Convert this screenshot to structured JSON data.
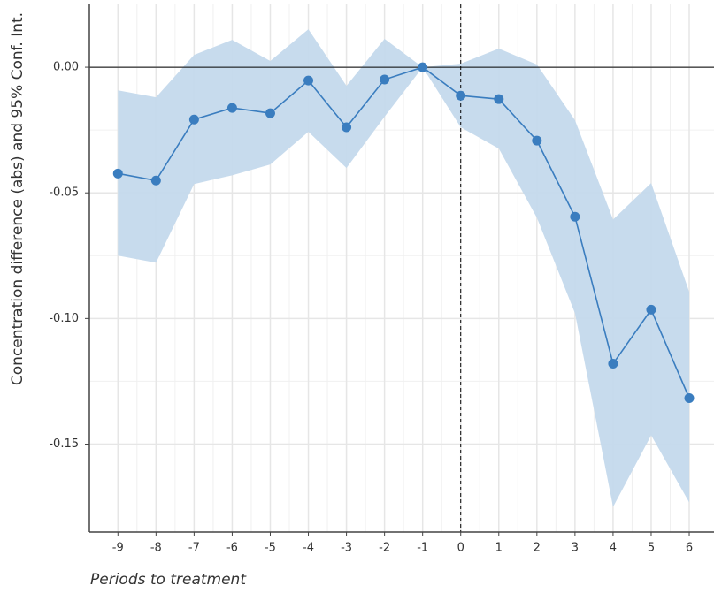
{
  "chart_data": {
    "type": "line",
    "xlabel": "Periods to treatment",
    "ylabel": "Concentration difference (abs) and 95% Conf. Int.",
    "x": [
      -9,
      -8,
      -7,
      -6,
      -5,
      -4,
      -3,
      -2,
      -1,
      0,
      1,
      2,
      3,
      4,
      5,
      6
    ],
    "values": [
      -0.0423,
      -0.0451,
      -0.0208,
      -0.0162,
      -0.0183,
      -0.0053,
      -0.0239,
      -0.0049,
      0,
      -0.0113,
      -0.0127,
      -0.0292,
      -0.0595,
      -0.118,
      -0.0965,
      -0.1317
    ],
    "ci_upper": [
      -0.0092,
      -0.012,
      0.0049,
      0.0109,
      0.0025,
      0.0151,
      -0.0074,
      0.0113,
      0,
      0.0014,
      0.0074,
      0.0011,
      -0.0211,
      -0.0606,
      -0.0461,
      -0.0894
    ],
    "ci_lower": [
      -0.075,
      -0.0778,
      -0.0465,
      -0.043,
      -0.0387,
      -0.0257,
      -0.0401,
      -0.0197,
      0,
      -0.0239,
      -0.0324,
      -0.0599,
      -0.0979,
      -0.175,
      -0.1465,
      -0.1732
    ],
    "color": "#3a7dbf",
    "band_color": "#c4d9ec",
    "xlim": [
      -9.75,
      6.65
    ],
    "ylim": [
      -0.185,
      0.025
    ],
    "xticks": [
      -9,
      -8,
      -7,
      -6,
      -5,
      -4,
      -3,
      -2,
      -1,
      0,
      1,
      2,
      3,
      4,
      5,
      6
    ],
    "yticks": [
      {
        "value": 0,
        "label": "0.00"
      },
      -0.05,
      {
        "value": -0.1,
        "label": "-0.10"
      },
      -0.15
    ],
    "hline": 0,
    "vline": 0,
    "grid": true
  }
}
